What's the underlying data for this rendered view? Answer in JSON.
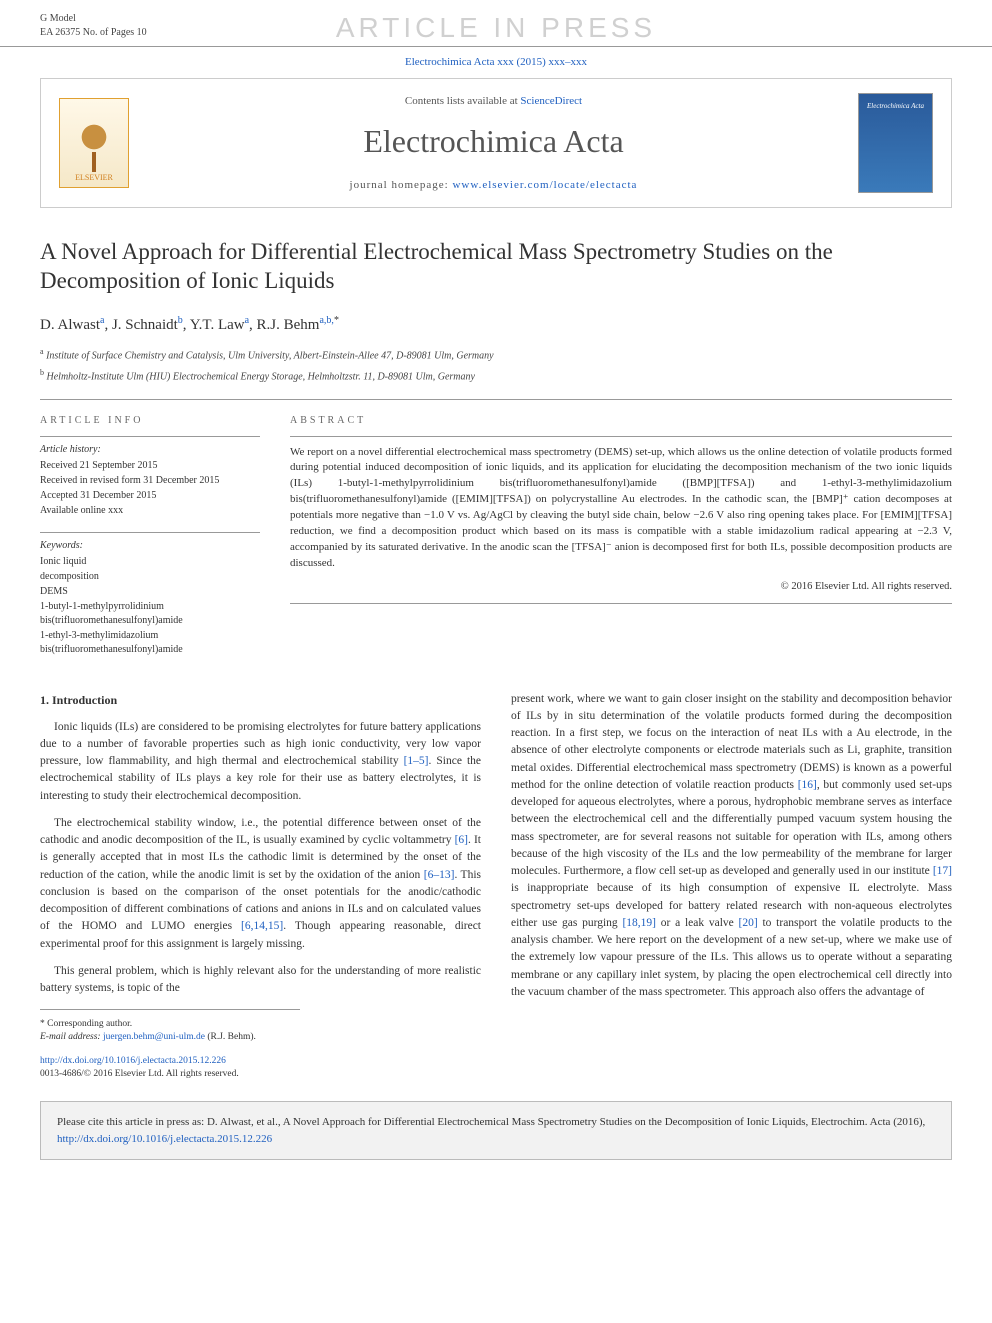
{
  "header": {
    "g_model": "G Model",
    "ea_number": "EA 26375 No. of Pages 10",
    "watermark": "ARTICLE IN PRESS",
    "journal_ref_prefix": "Electrochimica Acta xxx (2015) xxx–xxx"
  },
  "banner": {
    "contents_text": "Contents lists available at ",
    "contents_link": "ScienceDirect",
    "journal_name": "Electrochimica Acta",
    "homepage_prefix": "journal homepage: ",
    "homepage_url": "www.elsevier.com/locate/electacta",
    "elsevier_label": "ELSEVIER",
    "cover_title": "Electrochimica Acta"
  },
  "article": {
    "title": "A Novel Approach for Differential Electrochemical Mass Spectrometry Studies on the Decomposition of Ionic Liquids",
    "authors_html": "D. Alwast<sup>a</sup>, J. Schnaidt<sup>b</sup>, Y.T. Law<sup>a</sup>, R.J. Behm<sup>a,b,</sup><sup class='star'>*</sup>",
    "affiliations": [
      {
        "sup": "a",
        "text": "Institute of Surface Chemistry and Catalysis, Ulm University, Albert-Einstein-Allee 47, D-89081 Ulm, Germany"
      },
      {
        "sup": "b",
        "text": "Helmholtz-Institute Ulm (HIU) Electrochemical Energy Storage, Helmholtzstr. 11, D-89081 Ulm, Germany"
      }
    ]
  },
  "info": {
    "heading": "ARTICLE INFO",
    "history_label": "Article history:",
    "history": [
      "Received 21 September 2015",
      "Received in revised form 31 December 2015",
      "Accepted 31 December 2015",
      "Available online xxx"
    ],
    "keywords_label": "Keywords:",
    "keywords": [
      "Ionic liquid",
      "decomposition",
      "DEMS",
      "1-butyl-1-methylpyrrolidinium bis(trifluoromethanesulfonyl)amide",
      "1-ethyl-3-methylimidazolium bis(trifluoromethanesulfonyl)amide"
    ]
  },
  "abstract": {
    "heading": "ABSTRACT",
    "text": "We report on a novel differential electrochemical mass spectrometry (DEMS) set-up, which allows us the online detection of volatile products formed during potential induced decomposition of ionic liquids, and its application for elucidating the decomposition mechanism of the two ionic liquids (ILs) 1-butyl-1-methylpyrrolidinium bis(trifluoromethanesulfonyl)amide ([BMP][TFSA]) and 1-ethyl-3-methylimidazolium bis(trifluoromethanesulfonyl)amide ([EMIM][TFSA]) on polycrystalline Au electrodes. In the cathodic scan, the [BMP]⁺ cation decomposes at potentials more negative than −1.0 V vs. Ag/AgCl by cleaving the butyl side chain, below −2.6 V also ring opening takes place. For [EMIM][TFSA] reduction, we find a decomposition product which based on its mass is compatible with a stable imidazolium radical appearing at −2.3 V, accompanied by its saturated derivative. In the anodic scan the [TFSA]⁻ anion is decomposed first for both ILs, possible decomposition products are discussed.",
    "copyright": "© 2016 Elsevier Ltd. All rights reserved."
  },
  "intro": {
    "heading": "1. Introduction",
    "p1_a": "Ionic liquids (ILs) are considered to be promising electrolytes for future battery applications due to a number of favorable properties such as high ionic conductivity, very low vapor pressure, low flammability, and high thermal and electrochemical stability ",
    "p1_ref1": "[1–5]",
    "p1_b": ". Since the electrochemical stability of ILs plays a key role for their use as battery electrolytes, it is interesting to study their electrochemical decomposition.",
    "p2_a": "The electrochemical stability window, i.e., the potential difference between onset of the cathodic and anodic decomposition of the IL, is usually examined by cyclic voltammetry ",
    "p2_ref1": "[6]",
    "p2_b": ". It is generally accepted that in most ILs the cathodic limit is determined by the onset of the reduction of the cation, while the anodic limit is set by the oxidation of the anion ",
    "p2_ref2": "[6–13]",
    "p2_c": ". This conclusion is based on the comparison of the onset potentials for the anodic/cathodic decomposition of different combinations of cations and anions in ILs and on calculated values of the HOMO and LUMO energies ",
    "p2_ref3": "[6,14,15]",
    "p2_d": ". Though appearing reasonable, direct experimental proof for this assignment is largely missing.",
    "p3": "This general problem, which is highly relevant also for the understanding of more realistic battery systems, is topic of the",
    "p4_a": "present work, where we want to gain closer insight on the stability and decomposition behavior of ILs by in situ determination of the volatile products formed during the decomposition reaction. In a first step, we focus on the interaction of neat ILs with a Au electrode, in the absence of other electrolyte components or electrode materials such as Li, graphite, transition metal oxides. Differential electrochemical mass spectrometry (DEMS) is known as a powerful method for the online detection of volatile reaction products ",
    "p4_ref1": "[16]",
    "p4_b": ", but commonly used set-ups developed for aqueous electrolytes, where a porous, hydrophobic membrane serves as interface between the electrochemical cell and the differentially pumped vacuum system housing the mass spectrometer, are for several reasons not suitable for operation with ILs, among others because of the high viscosity of the ILs and the low permeability of the membrane for larger molecules. Furthermore, a flow cell set-up as developed and generally used in our institute ",
    "p4_ref2": "[17]",
    "p4_c": " is inappropriate because of its high consumption of expensive IL electrolyte. Mass spectrometry set-ups developed for battery related research with non-aqueous electrolytes either use gas purging ",
    "p4_ref3": "[18,19]",
    "p4_d": " or a leak valve ",
    "p4_ref4": "[20]",
    "p4_e": " to transport the volatile products to the analysis chamber. We here report on the development of a new set-up, where we make use of the extremely low vapour pressure of the ILs. This allows us to operate without a separating membrane or any capillary inlet system, by placing the open electrochemical cell directly into the vacuum chamber of the mass spectrometer. This approach also offers the advantage of"
  },
  "footnote": {
    "corr_label": "* Corresponding author.",
    "email_label": "E-mail address: ",
    "email": "juergen.behm@uni-ulm.de",
    "email_suffix": " (R.J. Behm)."
  },
  "doi": {
    "url": "http://dx.doi.org/10.1016/j.electacta.2015.12.226",
    "issn_line": "0013-4686/© 2016 Elsevier Ltd. All rights reserved."
  },
  "citebox": {
    "prefix": "Please cite this article in press as: D. Alwast, et al., A Novel Approach for Differential Electrochemical Mass Spectrometry Studies on the Decomposition of Ionic Liquids, Electrochim. Acta (2016), ",
    "url": "http://dx.doi.org/10.1016/j.electacta.2015.12.226"
  },
  "colors": {
    "link": "#2060c0",
    "watermark": "#d0d0d0",
    "rule": "#999999",
    "citebox_bg": "#f2f2f2"
  }
}
